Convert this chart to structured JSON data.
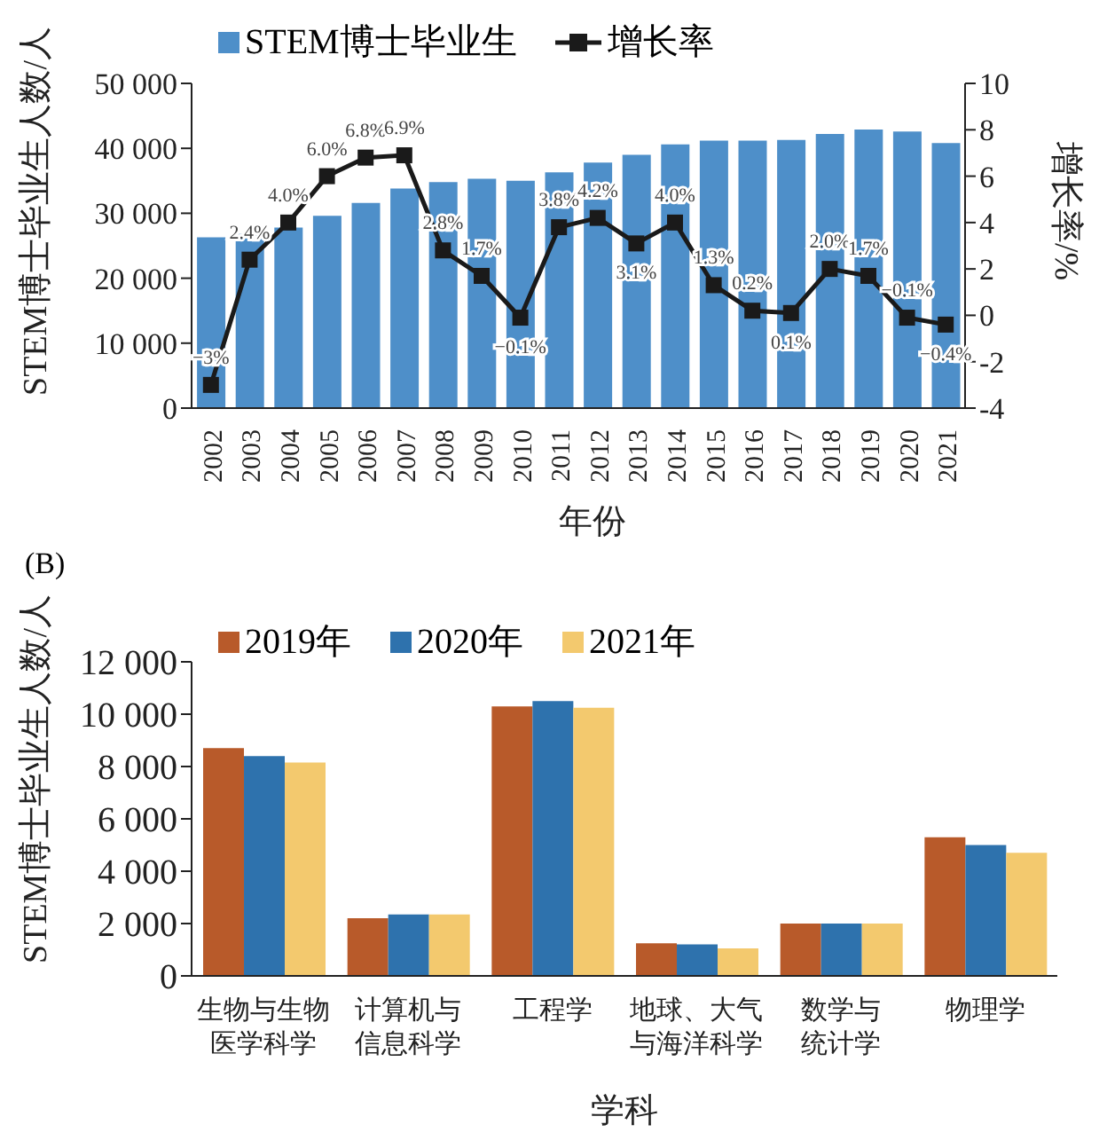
{
  "chart_data": [
    {
      "type": "bar",
      "categories": [
        "2002",
        "2003",
        "2004",
        "2005",
        "2006",
        "2007",
        "2008",
        "2009",
        "2010",
        "2011",
        "2012",
        "2013",
        "2014",
        "2015",
        "2016",
        "2017",
        "2018",
        "2019",
        "2020",
        "2021"
      ],
      "xlabel": "年份",
      "ylabel": "STEM博士毕业生人数/人",
      "y2label": "增长率/%",
      "series": [
        {
          "name": "STEM博士毕业生",
          "type": "bar",
          "color": "#4e8fc9",
          "values": [
            26300,
            26800,
            27800,
            29600,
            31600,
            33800,
            34800,
            35300,
            35000,
            36300,
            37800,
            39000,
            40600,
            41200,
            41200,
            41300,
            42200,
            42900,
            42600,
            40800
          ]
        },
        {
          "name": "增长率",
          "type": "line",
          "axis": "y2",
          "color": "#1a1a1a",
          "values": [
            -3,
            2.4,
            4.0,
            6.0,
            6.8,
            6.9,
            2.8,
            1.7,
            -0.1,
            3.8,
            4.2,
            3.1,
            4.0,
            1.3,
            0.2,
            0.1,
            2.0,
            1.7,
            -0.1,
            -0.4
          ],
          "value_labels": [
            "−3%",
            "2.4%",
            "4.0%",
            "6.0%",
            "6.8%",
            "6.9%",
            "2.8%",
            "1.7%",
            "−0.1%",
            "3.8%",
            "4.2%",
            "3.1%",
            "4.0%",
            "1.3%",
            "0.2%",
            "0.1%",
            "2.0%",
            "1.7%",
            "−0.1%",
            "−0.4%"
          ]
        }
      ],
      "ylim": [
        0,
        50000
      ],
      "yticks": [
        0,
        {
          "value": 10000,
          "label": "10 000"
        },
        {
          "value": 20000,
          "label": "20 000"
        },
        {
          "value": 30000,
          "label": "30 000"
        },
        {
          "value": 40000,
          "label": "40 000"
        },
        {
          "value": 50000,
          "label": "50 000"
        }
      ],
      "y2lim": [
        -4,
        10
      ],
      "y2ticks": [
        -4,
        -2,
        0,
        2,
        4,
        6,
        8,
        10
      ],
      "marker": "square",
      "grid": false,
      "legend": "top left"
    },
    {
      "type": "bar",
      "categories": [
        "生物与生物医学科学",
        "计算机与信息科学",
        "工程学",
        "地球、大气与海洋科学",
        "数学与统计学",
        "物理学"
      ],
      "xlabel": "学科",
      "ylabel": "STEM博士毕业生人数/人",
      "annotations": [
        "(B)"
      ],
      "series": [
        {
          "name": "2019年",
          "color": "#b85a2a",
          "values": [
            8700,
            2200,
            10300,
            1250,
            2000,
            5300
          ]
        },
        {
          "name": "2020年",
          "color": "#2e72ad",
          "values": [
            8400,
            2350,
            10500,
            1200,
            2000,
            5000
          ]
        },
        {
          "name": "2021年",
          "color": "#f3c96e",
          "values": [
            8150,
            2350,
            10250,
            1050,
            2000,
            4700
          ]
        }
      ],
      "ylim": [
        0,
        12000
      ],
      "yticks": [
        0,
        {
          "value": 2000,
          "label": "2 000"
        },
        {
          "value": 4000,
          "label": "4 000"
        },
        {
          "value": 6000,
          "label": "6 000"
        },
        {
          "value": 8000,
          "label": "8 000"
        },
        {
          "value": 10000,
          "label": "10 000"
        },
        {
          "value": 12000,
          "label": "12 000"
        }
      ],
      "grid": false,
      "legend": "top left"
    }
  ]
}
